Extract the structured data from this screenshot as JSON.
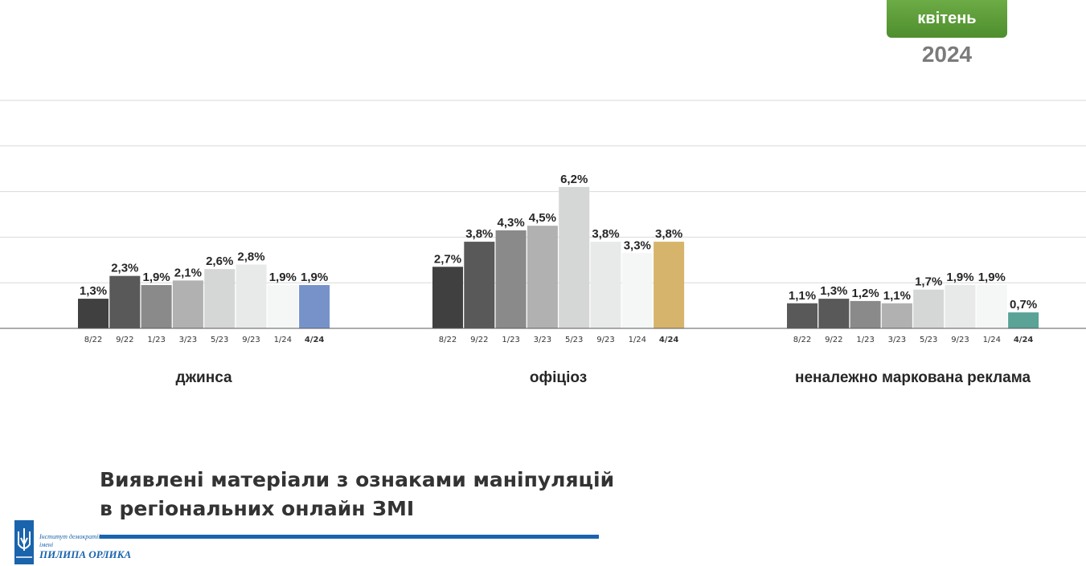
{
  "header": {
    "month": "квітень",
    "year": "2024"
  },
  "title": {
    "line1": "Виявлені матеріали з ознаками маніпуляцій",
    "line2": "в регіональних онлайн ЗМІ"
  },
  "logo": {
    "line1": "Інститут демократії",
    "line2": "імені",
    "line3": "ПИЛИПА ОРЛИКА"
  },
  "colors": {
    "accent_green": "#5a9b37",
    "title_rule": "#1a64ad",
    "grid": "#d9d9d9",
    "axis": "#595959"
  },
  "chart_data": {
    "type": "bar",
    "ylim": [
      0,
      10
    ],
    "gridlines": [
      2,
      4,
      6,
      8,
      10
    ],
    "groups": [
      {
        "name": "джинса",
        "categories": [
          "8/22",
          "9/22",
          "1/23",
          "3/23",
          "5/23",
          "9/23",
          "1/24",
          "4/24"
        ],
        "values": [
          1.3,
          2.3,
          1.9,
          2.1,
          2.6,
          2.8,
          1.9,
          1.9
        ],
        "labels": [
          "1,3%",
          "2,3%",
          "1,9%",
          "2,1%",
          "2,6%",
          "2,8%",
          "1,9%",
          "1,9%"
        ],
        "colors": [
          "#404040",
          "#595959",
          "#8a8a8a",
          "#b1b1b1",
          "#d5d6d6",
          "#e8eaea",
          "#f5f6f6",
          "#7692c9"
        ]
      },
      {
        "name": "офіціоз",
        "categories": [
          "8/22",
          "9/22",
          "1/23",
          "3/23",
          "5/23",
          "9/23",
          "1/24",
          "4/24"
        ],
        "values": [
          2.7,
          3.8,
          4.3,
          4.5,
          6.2,
          3.8,
          3.3,
          3.8
        ],
        "labels": [
          "2,7%",
          "3,8%",
          "4,3%",
          "4,5%",
          "6,2%",
          "3,8%",
          "3,3%",
          "3,8%"
        ],
        "colors": [
          "#404040",
          "#595959",
          "#8a8a8a",
          "#b1b1b1",
          "#d5d6d6",
          "#e8eaea",
          "#f5f6f6",
          "#d6b46b"
        ]
      },
      {
        "name": "неналежно маркована реклама",
        "categories": [
          "8/22",
          "9/22",
          "1/23",
          "3/23",
          "5/23",
          "9/23",
          "1/24",
          "4/24"
        ],
        "values": [
          1.1,
          1.3,
          1.2,
          1.1,
          1.7,
          1.9,
          1.9,
          0.7
        ],
        "labels": [
          "1,1%",
          "1,3%",
          "1,2%",
          "1,1%",
          "1,7%",
          "1,9%",
          "1,9%",
          "0,7%"
        ],
        "colors": [
          "#595959",
          "#595959",
          "#8a8a8a",
          "#b1b1b1",
          "#d5d6d6",
          "#e8eaea",
          "#f5f6f6",
          "#5aa396"
        ]
      }
    ]
  }
}
